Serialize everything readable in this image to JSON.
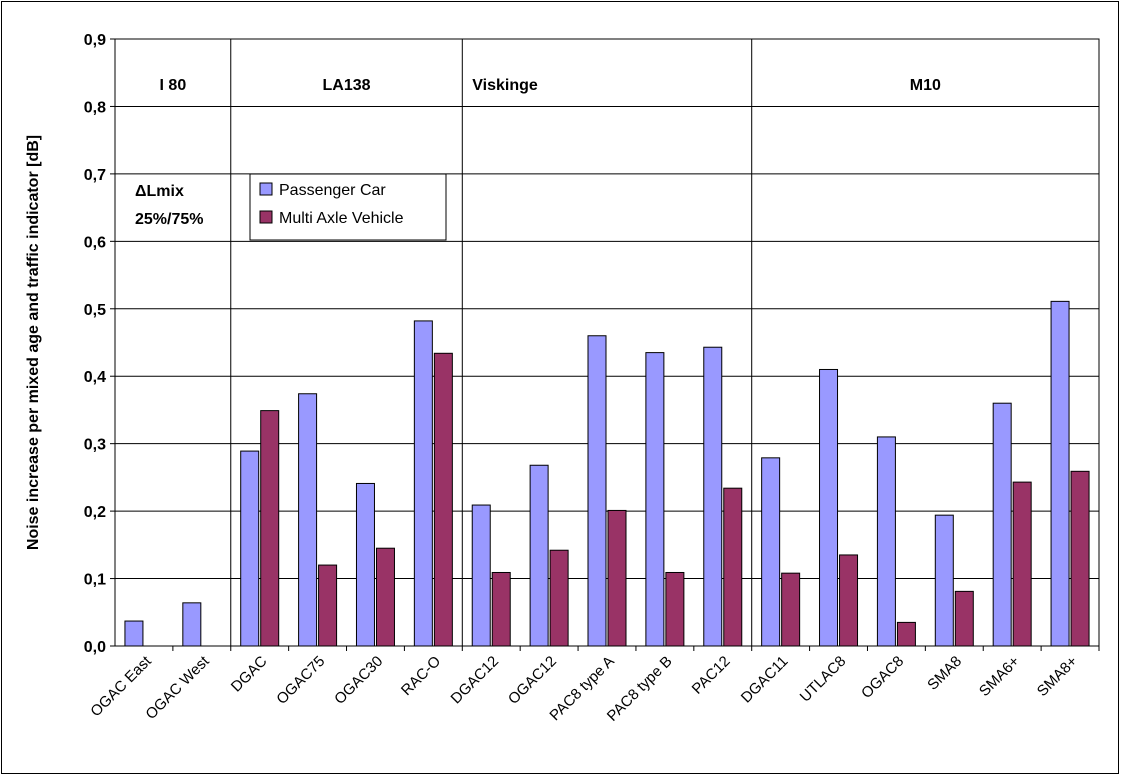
{
  "chart_data": {
    "type": "bar",
    "title": "",
    "xlabel": "",
    "ylabel": "Noise increase per mixed age and traffic indicator [dB]",
    "ylim": [
      0,
      0.9
    ],
    "yticks": [
      "0,0",
      "0,1",
      "0,2",
      "0,3",
      "0,4",
      "0,5",
      "0,6",
      "0,7",
      "0,8",
      "0,9"
    ],
    "grid": true,
    "legend_position": "top-left",
    "annotation": {
      "line1": "ΔLmix",
      "line2": "25%/75%"
    },
    "categories": [
      "OGAC East",
      "OGAC West",
      "DGAC",
      "OGAC75",
      "OGAC30",
      "RAC-O",
      "DGAC12",
      "OGAC12",
      "PAC8 type A",
      "PAC8 type B",
      "PAC12",
      "DGAC11",
      "UTLAC8",
      "OGAC8",
      "SMA8",
      "SMA6+",
      "SMA8+"
    ],
    "groups": [
      {
        "label": "I 80",
        "start": 0,
        "end": 1
      },
      {
        "label": "LA138",
        "start": 2,
        "end": 5
      },
      {
        "label": "Viskinge",
        "start": 6,
        "end": 10
      },
      {
        "label": "M10",
        "start": 11,
        "end": 16
      }
    ],
    "series": [
      {
        "name": "Passenger Car",
        "color": "#9999ff",
        "values": [
          0.037,
          0.064,
          0.289,
          0.374,
          0.241,
          0.482,
          0.209,
          0.268,
          0.46,
          0.435,
          0.443,
          0.279,
          0.41,
          0.31,
          0.194,
          0.36,
          0.511
        ]
      },
      {
        "name": "Multi Axle Vehicle",
        "color": "#993366",
        "values": [
          null,
          null,
          0.349,
          0.12,
          0.145,
          0.434,
          0.109,
          0.142,
          0.201,
          0.109,
          0.234,
          0.108,
          0.135,
          0.035,
          0.081,
          0.243,
          0.259
        ]
      }
    ]
  }
}
